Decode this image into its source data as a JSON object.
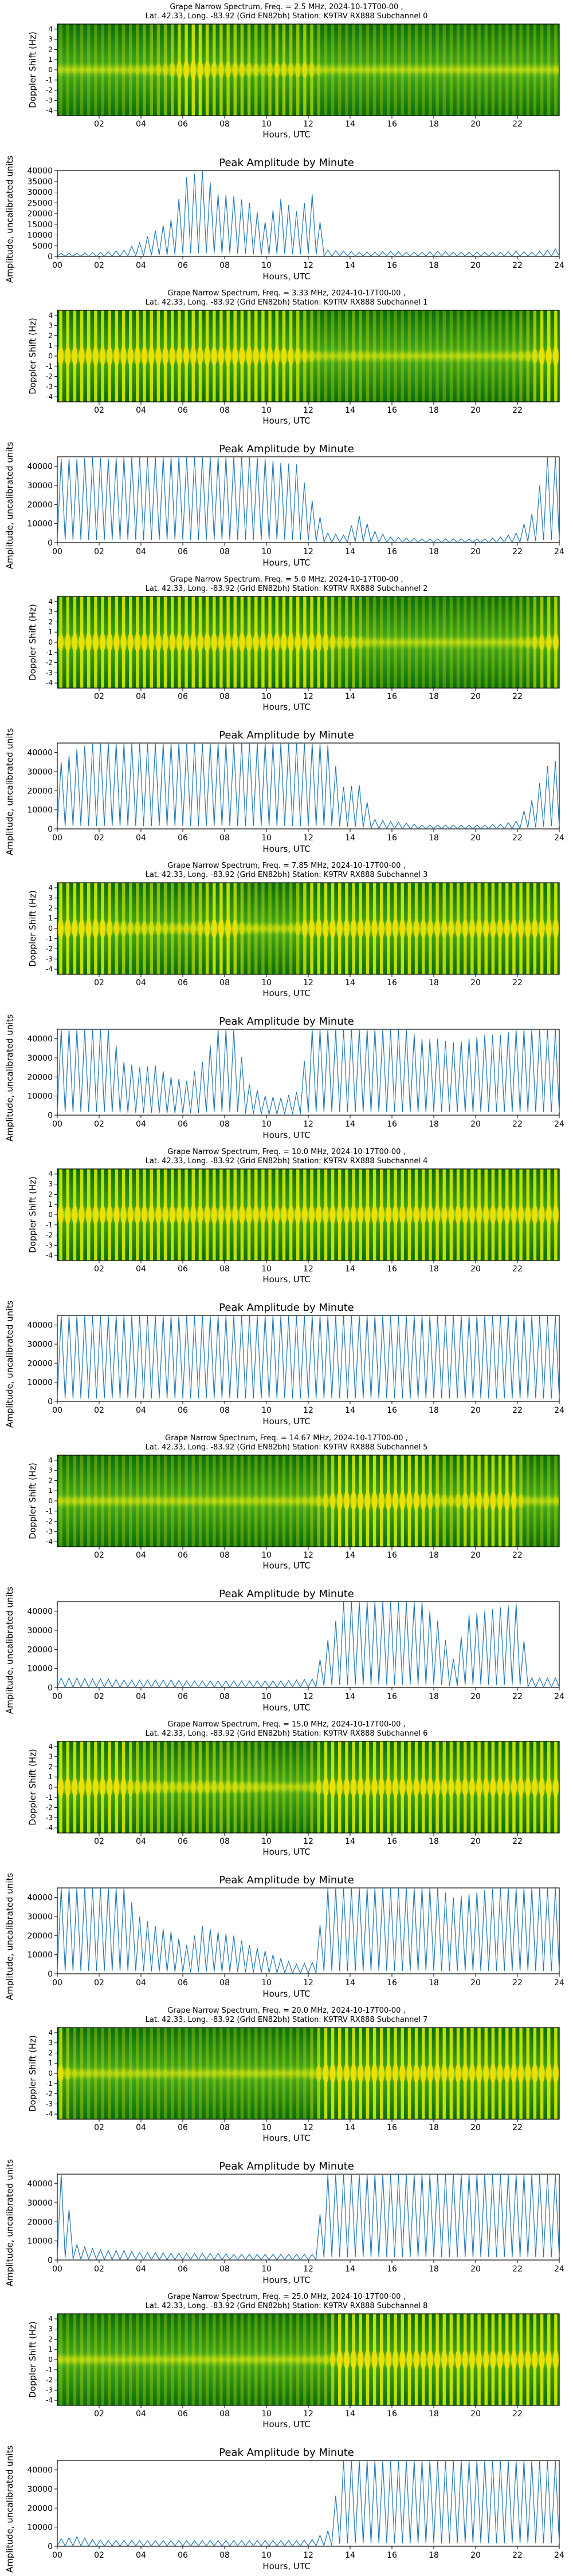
{
  "figure": {
    "spectrum_title_prefix": "Grape Narrow Spectrum, Freq. = ",
    "spectrum_title_suffix": " MHz, 2024-10-17T00-00 ,",
    "location_line_prefix": "Lat.  42.33, Long. -83.92 (Grid EN82bh) Station: K9TRV RX888 Subchannel ",
    "spectrum_ylabel": "Doppler Shift (Hz)",
    "spectrum_xlabel": "Hours, UTC",
    "spectrum_yticks": [
      "-4",
      "-3",
      "-2",
      "-1",
      "0",
      "1",
      "2",
      "3",
      "4"
    ],
    "spectrum_xticks": [
      "02",
      "04",
      "06",
      "08",
      "10",
      "12",
      "14",
      "16",
      "18",
      "20",
      "22"
    ],
    "amplitude_title": "Peak Amplitude by Minute",
    "amplitude_ylabel": "Amplitude, uncalibrated units",
    "amplitude_xlabel": "Hours, UTC",
    "amplitude_xticks": [
      "00",
      "02",
      "04",
      "06",
      "08",
      "10",
      "12",
      "14",
      "16",
      "18",
      "20",
      "22",
      "24"
    ],
    "colors": {
      "spectrum_bg": "#0b7a0b",
      "spectrum_band": "#e8f000",
      "line": "#1f77b4"
    }
  },
  "chart_data": [
    {
      "type": "heatmap",
      "subchannel": "0",
      "freq": "2.5",
      "intensity_scale": "amplitude",
      "xlim": [
        0,
        24
      ],
      "ylim": [
        -4.5,
        4.5
      ]
    },
    {
      "type": "line",
      "subchannel": "0",
      "x": [
        0,
        0.75,
        1.5,
        2.25,
        3,
        3.75,
        4.5,
        5.25,
        6,
        6.75,
        7.5,
        8.25,
        9,
        9.75,
        10.5,
        11.25,
        12,
        12.75,
        13.5,
        14.25,
        15,
        15.75,
        16.5,
        17.25,
        18,
        18.75,
        19.5,
        20.25,
        21,
        21.75,
        22.5,
        23.25,
        24
      ],
      "values": [
        1500,
        1500,
        1800,
        2200,
        3000,
        6500,
        12000,
        17000,
        37000,
        40000,
        29000,
        28000,
        25000,
        16000,
        27000,
        21000,
        29000,
        3000,
        2500,
        2000,
        2000,
        2500,
        2000,
        2000,
        2500,
        2000,
        2000,
        2000,
        2000,
        2500,
        2000,
        3000,
        4000
      ],
      "ylim": [
        0,
        40000
      ],
      "yticks": [
        0,
        5000,
        10000,
        15000,
        20000,
        25000,
        30000,
        35000,
        40000
      ],
      "xlim": [
        0,
        24
      ]
    },
    {
      "type": "heatmap",
      "subchannel": "1",
      "freq": "3.33",
      "intensity_scale": "amplitude",
      "xlim": [
        0,
        24
      ],
      "ylim": [
        -4.5,
        4.5
      ]
    },
    {
      "type": "line",
      "subchannel": "1",
      "x": [
        0,
        0.75,
        1.5,
        2.25,
        3,
        3.75,
        4.5,
        5.25,
        6,
        6.75,
        7.5,
        8.25,
        9,
        9.75,
        10.5,
        11.25,
        12,
        12.75,
        13.5,
        14.25,
        15,
        15.75,
        16.5,
        17.25,
        18,
        18.75,
        19.5,
        20.25,
        21,
        21.75,
        22.5,
        23.25,
        24
      ],
      "values": [
        44000,
        44000,
        45000,
        44000,
        45000,
        45000,
        45000,
        45000,
        45000,
        45000,
        45000,
        45000,
        45000,
        44000,
        42000,
        41000,
        22000,
        5000,
        4000,
        14000,
        6000,
        3000,
        2500,
        2000,
        2000,
        2000,
        2000,
        2000,
        3000,
        5000,
        15000,
        45000,
        45000
      ],
      "ylim": [
        0,
        45000
      ],
      "yticks": [
        0,
        10000,
        20000,
        30000,
        40000
      ],
      "xlim": [
        0,
        24
      ]
    },
    {
      "type": "heatmap",
      "subchannel": "2",
      "freq": "5.0",
      "intensity_scale": "amplitude",
      "xlim": [
        0,
        24
      ],
      "ylim": [
        -4.5,
        4.5
      ]
    },
    {
      "type": "line",
      "subchannel": "2",
      "x": [
        0,
        0.75,
        1.5,
        2.25,
        3,
        3.75,
        4.5,
        5.25,
        6,
        6.75,
        7.5,
        8.25,
        9,
        9.75,
        10.5,
        11.25,
        12,
        12.75,
        13.5,
        14.25,
        15,
        15.75,
        16.5,
        17.25,
        18,
        18.75,
        19.5,
        20.25,
        21,
        21.75,
        22.5,
        23.25,
        24
      ],
      "values": [
        35000,
        42000,
        45000,
        45000,
        45000,
        45000,
        45000,
        45000,
        45000,
        45000,
        45000,
        45000,
        45000,
        45000,
        45000,
        45000,
        45000,
        44000,
        22000,
        23000,
        5000,
        4000,
        3000,
        2000,
        2000,
        2000,
        2000,
        2000,
        2500,
        4000,
        15000,
        33000,
        38000
      ],
      "ylim": [
        0,
        45000
      ],
      "yticks": [
        0,
        10000,
        20000,
        30000,
        40000
      ],
      "xlim": [
        0,
        24
      ]
    },
    {
      "type": "heatmap",
      "subchannel": "3",
      "freq": "7.85",
      "intensity_scale": "amplitude",
      "xlim": [
        0,
        24
      ],
      "ylim": [
        -4.5,
        4.5
      ]
    },
    {
      "type": "line",
      "subchannel": "3",
      "x": [
        0,
        0.75,
        1.5,
        2.25,
        3,
        3.75,
        4.5,
        5.25,
        6,
        6.75,
        7.5,
        8.25,
        9,
        9.75,
        10.5,
        11.25,
        12,
        12.75,
        13.5,
        14.25,
        15,
        15.75,
        16.5,
        17.25,
        18,
        18.75,
        19.5,
        20.25,
        21,
        21.75,
        22.5,
        23.25,
        24
      ],
      "values": [
        45000,
        45000,
        45000,
        45000,
        28000,
        25000,
        26000,
        20000,
        18000,
        28000,
        45000,
        45000,
        16000,
        10000,
        9000,
        12000,
        45000,
        45000,
        45000,
        45000,
        45000,
        45000,
        45000,
        40000,
        40000,
        38000,
        40000,
        42000,
        42000,
        45000,
        45000,
        45000,
        45000
      ],
      "ylim": [
        0,
        45000
      ],
      "yticks": [
        0,
        10000,
        20000,
        30000,
        40000
      ],
      "xlim": [
        0,
        24
      ]
    },
    {
      "type": "heatmap",
      "subchannel": "4",
      "freq": "10.0",
      "intensity_scale": "amplitude",
      "xlim": [
        0,
        24
      ],
      "ylim": [
        -4.5,
        4.5
      ]
    },
    {
      "type": "line",
      "subchannel": "4",
      "x": [
        0,
        0.75,
        1.5,
        2.25,
        3,
        3.75,
        4.5,
        5.25,
        6,
        6.75,
        7.5,
        8.25,
        9,
        9.75,
        10.5,
        11.25,
        12,
        12.75,
        13.5,
        14.25,
        15,
        15.75,
        16.5,
        17.25,
        18,
        18.75,
        19.5,
        20.25,
        21,
        21.75,
        22.5,
        23.25,
        24
      ],
      "values": [
        45000,
        45000,
        45000,
        45000,
        45000,
        45000,
        45000,
        45000,
        45000,
        45000,
        45000,
        45000,
        45000,
        45000,
        45000,
        45000,
        45000,
        45000,
        45000,
        45000,
        45000,
        45000,
        45000,
        45000,
        45000,
        45000,
        45000,
        45000,
        45000,
        45000,
        45000,
        45000,
        45000
      ],
      "ylim": [
        0,
        45000
      ],
      "yticks": [
        0,
        10000,
        20000,
        30000,
        40000
      ],
      "xlim": [
        0,
        24
      ]
    },
    {
      "type": "heatmap",
      "subchannel": "5",
      "freq": "14.67",
      "intensity_scale": "amplitude",
      "xlim": [
        0,
        24
      ],
      "ylim": [
        -4.5,
        4.5
      ]
    },
    {
      "type": "line",
      "subchannel": "5",
      "x": [
        0,
        0.75,
        1.5,
        2.25,
        3,
        3.75,
        4.5,
        5.25,
        6,
        6.75,
        7.5,
        8.25,
        9,
        9.75,
        10.5,
        11.25,
        12,
        12.75,
        13.5,
        14.25,
        15,
        15.75,
        16.5,
        17.25,
        18,
        18.75,
        19.5,
        20.25,
        21,
        21.75,
        22.5,
        23.25,
        24
      ],
      "values": [
        5000,
        5000,
        4500,
        4500,
        4000,
        4000,
        4000,
        4000,
        3500,
        3500,
        3500,
        3500,
        3500,
        3500,
        3500,
        4000,
        4500,
        25000,
        45000,
        45000,
        45000,
        45000,
        45000,
        45000,
        35000,
        15000,
        38000,
        40000,
        42000,
        44000,
        5000,
        5000,
        5000
      ],
      "ylim": [
        0,
        45000
      ],
      "yticks": [
        0,
        10000,
        20000,
        30000,
        40000
      ],
      "xlim": [
        0,
        24
      ]
    },
    {
      "type": "heatmap",
      "subchannel": "6",
      "freq": "15.0",
      "intensity_scale": "amplitude",
      "xlim": [
        0,
        24
      ],
      "ylim": [
        -4.5,
        4.5
      ]
    },
    {
      "type": "line",
      "subchannel": "6",
      "x": [
        0,
        0.75,
        1.5,
        2.25,
        3,
        3.75,
        4.5,
        5.25,
        6,
        6.75,
        7.5,
        8.25,
        9,
        9.75,
        10.5,
        11.25,
        12,
        12.75,
        13.5,
        14.25,
        15,
        15.75,
        16.5,
        17.25,
        18,
        18.75,
        19.5,
        20.25,
        21,
        21.75,
        22.5,
        23.25,
        24
      ],
      "values": [
        45000,
        45000,
        45000,
        45000,
        45000,
        30000,
        25000,
        22000,
        15000,
        25000,
        22000,
        20000,
        15000,
        12000,
        8000,
        5000,
        6000,
        45000,
        45000,
        45000,
        45000,
        45000,
        45000,
        45000,
        45000,
        40000,
        42000,
        44000,
        45000,
        45000,
        45000,
        45000,
        45000
      ],
      "ylim": [
        0,
        45000
      ],
      "yticks": [
        0,
        10000,
        20000,
        30000,
        40000
      ],
      "xlim": [
        0,
        24
      ]
    },
    {
      "type": "heatmap",
      "subchannel": "7",
      "freq": "20.0",
      "intensity_scale": "amplitude",
      "xlim": [
        0,
        24
      ],
      "ylim": [
        -4.5,
        4.5
      ]
    },
    {
      "type": "line",
      "subchannel": "7",
      "x": [
        0,
        0.75,
        1.5,
        2.25,
        3,
        3.75,
        4.5,
        5.25,
        6,
        6.75,
        7.5,
        8.25,
        9,
        9.75,
        10.5,
        11.25,
        12,
        12.75,
        13.5,
        14.25,
        15,
        15.75,
        16.5,
        17.25,
        18,
        18.75,
        19.5,
        20.25,
        21,
        21.75,
        22.5,
        23.25,
        24
      ],
      "values": [
        45000,
        8000,
        6000,
        5000,
        5000,
        4000,
        4000,
        3500,
        3500,
        3500,
        3500,
        3000,
        3000,
        3000,
        3000,
        3000,
        3000,
        45000,
        45000,
        45000,
        45000,
        45000,
        45000,
        45000,
        45000,
        45000,
        45000,
        45000,
        45000,
        45000,
        45000,
        45000,
        45000
      ],
      "ylim": [
        0,
        45000
      ],
      "yticks": [
        0,
        10000,
        20000,
        30000,
        40000
      ],
      "xlim": [
        0,
        24
      ]
    },
    {
      "type": "heatmap",
      "subchannel": "8",
      "freq": "25.0",
      "intensity_scale": "amplitude",
      "xlim": [
        0,
        24
      ],
      "ylim": [
        -4.5,
        4.5
      ]
    },
    {
      "type": "line",
      "subchannel": "8",
      "x": [
        0,
        0.75,
        1.5,
        2.25,
        3,
        3.75,
        4.5,
        5.25,
        6,
        6.75,
        7.5,
        8.25,
        9,
        9.75,
        10.5,
        11.25,
        12,
        12.75,
        13.5,
        14.25,
        15,
        15.75,
        16.5,
        17.25,
        18,
        18.75,
        19.5,
        20.25,
        21,
        21.75,
        22.5,
        23.25,
        24
      ],
      "values": [
        4000,
        5000,
        3500,
        3000,
        3000,
        3000,
        3000,
        3000,
        3000,
        3000,
        3000,
        3000,
        3000,
        3000,
        3000,
        3000,
        3500,
        8000,
        45000,
        45000,
        45000,
        45000,
        45000,
        45000,
        45000,
        45000,
        45000,
        45000,
        45000,
        45000,
        45000,
        45000,
        45000
      ],
      "ylim": [
        0,
        45000
      ],
      "yticks": [
        0,
        10000,
        20000,
        30000,
        40000
      ],
      "xlim": [
        0,
        24
      ]
    }
  ]
}
